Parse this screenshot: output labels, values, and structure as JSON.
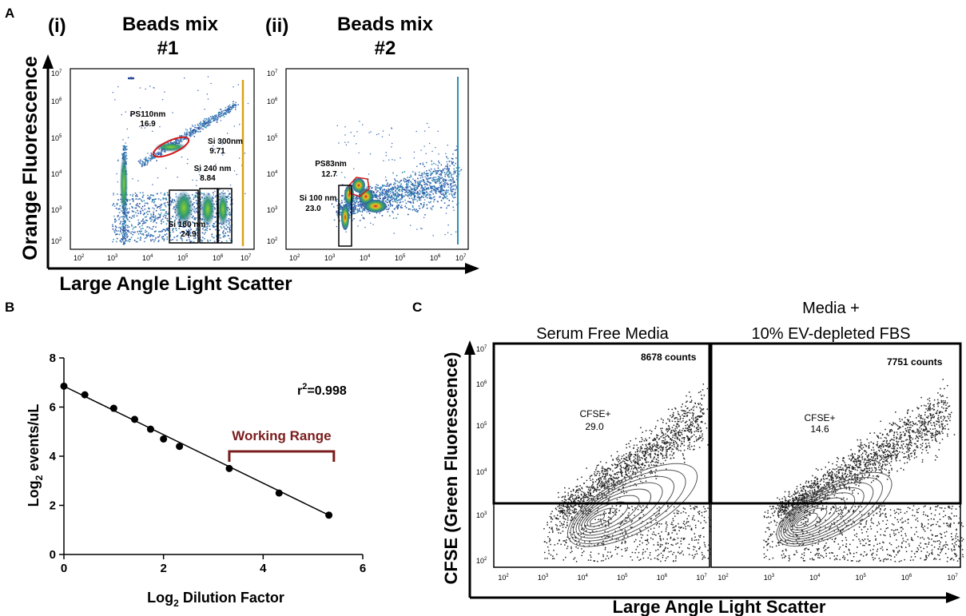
{
  "panel_letters": {
    "a": "A",
    "b": "B",
    "c": "C"
  },
  "panel_a": {
    "subpanels": [
      {
        "index_label": "(i)",
        "title_line1": "Beads mix",
        "title_line2": "#1"
      },
      {
        "index_label": "(ii)",
        "title_line1": "Beads mix",
        "title_line2": "#2"
      }
    ],
    "ylabel": "Orange Fluorescence",
    "xlabel": "Large Angle Light Scatter",
    "tick_labels": [
      "10",
      "10",
      "10",
      "10",
      "10",
      "10"
    ],
    "tick_exponents": [
      "2",
      "3",
      "4",
      "5",
      "6",
      "7"
    ],
    "gates_i": [
      {
        "name": "PS110nm",
        "value": "16.9"
      },
      {
        "name": "Si 300nm",
        "value": "9.71"
      },
      {
        "name": "Si 240 nm",
        "value": "8.84"
      },
      {
        "name": "Si 180 nm",
        "value": "24.9"
      }
    ],
    "gates_ii": [
      {
        "name": "PS83nm",
        "value": "12.7"
      },
      {
        "name": "Si 100 nm",
        "value": "23.0"
      }
    ]
  },
  "panel_c": {
    "titles": [
      {
        "line1": "Serum Free Media",
        "line2": ""
      },
      {
        "line1": "Media +",
        "line2": "10% EV-depleted FBS"
      }
    ],
    "counts": [
      "8678 counts",
      "7751 counts"
    ],
    "gates": [
      {
        "name": "CFSE+",
        "value": "29.0"
      },
      {
        "name": "CFSE+",
        "value": "14.6"
      }
    ],
    "ylabel": "CFSE (Green Fluorescence)",
    "xlabel": "Large Angle Light Scatter",
    "count_color": "#ff0000"
  },
  "chart_data": [
    {
      "type": "scatter",
      "panel": "B",
      "xlabel": "Log2 Dilution Factor",
      "ylabel": "Log2 events/uL",
      "xlim": [
        0,
        6
      ],
      "ylim": [
        0,
        8
      ],
      "xticks": [
        "0",
        "2",
        "4",
        "6"
      ],
      "yticks": [
        "0",
        "2",
        "4",
        "6",
        "8"
      ],
      "x": [
        0,
        0.42,
        1.0,
        1.42,
        1.74,
        2.0,
        2.32,
        3.32,
        4.32,
        5.32
      ],
      "y": [
        6.85,
        6.5,
        5.95,
        5.5,
        5.1,
        4.7,
        4.4,
        3.5,
        2.5,
        1.6
      ],
      "fit_line": {
        "x": [
          0,
          5.32
        ],
        "y": [
          6.85,
          1.6
        ]
      },
      "annotation": "r",
      "annotation_exponent": "2",
      "annotation_value": "=0.998",
      "range_label": "Working Range",
      "range_x": [
        3.32,
        5.42
      ],
      "range_color": "#7b1c1c",
      "colors": {
        "marker": "#000000",
        "line": "#000000"
      }
    }
  ]
}
